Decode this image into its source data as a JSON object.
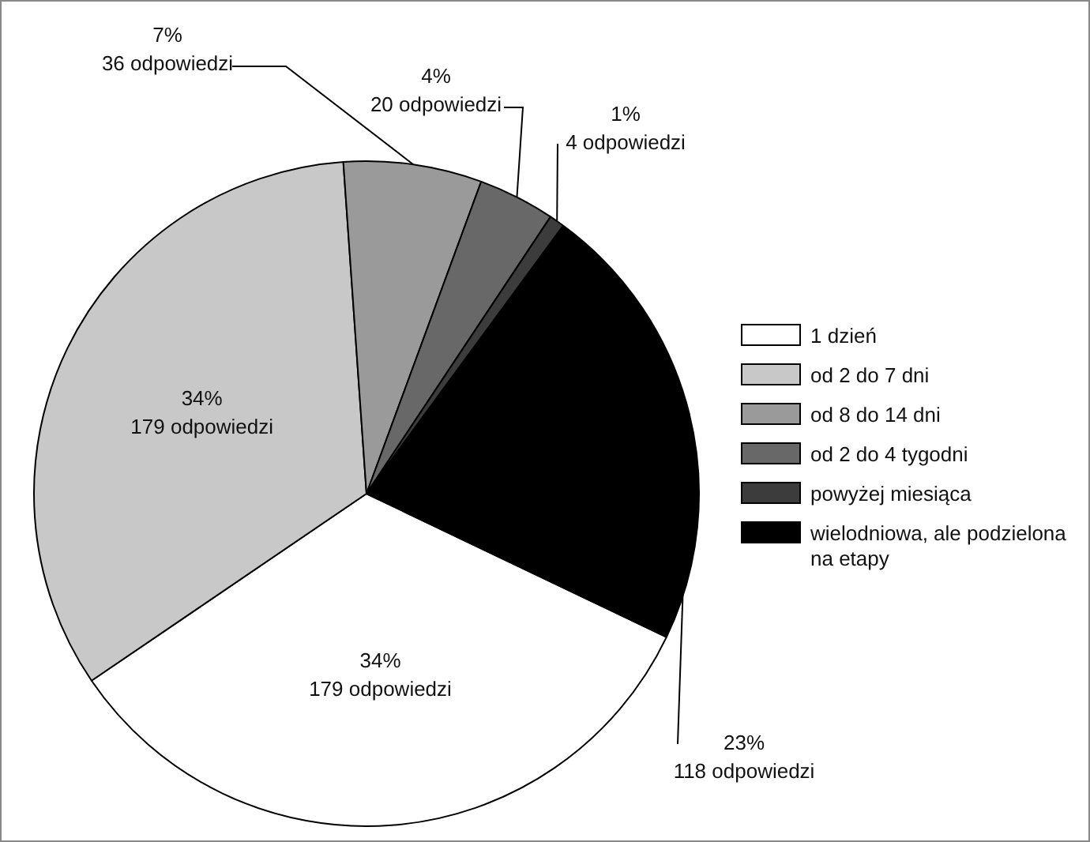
{
  "chart_data": {
    "type": "pie",
    "categories": [
      "1 dzień",
      "od 2 do 7 dni",
      "od 8 do 14 dni",
      "od 2 do 4 tygodni",
      "powyżej miesiąca",
      "wielodniowa, ale podzielona na etapy"
    ],
    "values": [
      179,
      179,
      36,
      20,
      4,
      118
    ],
    "value_labels": [
      "34%\n179 odpowiedzi",
      "34%\n179 odpowiedzi",
      "7%\n36 odpowiedzi",
      "4%\n20 odpowiedzi",
      "1%\n4 odpowiedzi",
      "23%\n118 odpowiedzi"
    ],
    "colors": [
      "#ffffff",
      "#c8c8c8",
      "#9a9a9a",
      "#686868",
      "#3c3c3c",
      "#000000"
    ],
    "legend": "right"
  }
}
